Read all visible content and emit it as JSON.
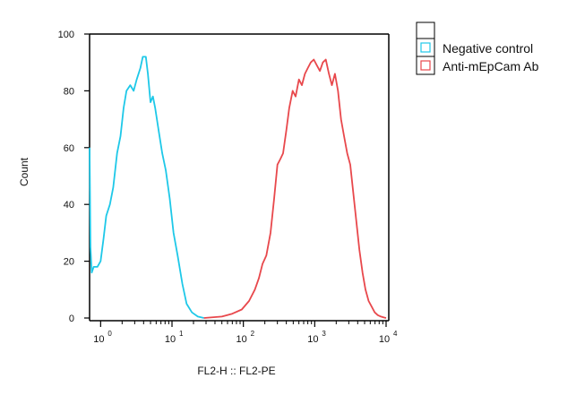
{
  "chart_data": {
    "type": "line",
    "title": "",
    "xlabel": "FL2-H :: FL2-PE",
    "ylabel": "Count",
    "xscale": "log",
    "xlim": [
      0.7,
      10000
    ],
    "ylim": [
      0,
      100
    ],
    "xticks": [
      {
        "base": "10",
        "exp": "0",
        "value": 1
      },
      {
        "base": "10",
        "exp": "1",
        "value": 10
      },
      {
        "base": "10",
        "exp": "2",
        "value": 100
      },
      {
        "base": "10",
        "exp": "3",
        "value": 1000
      },
      {
        "base": "10",
        "exp": "4",
        "value": 10000
      }
    ],
    "yticks": [
      0,
      20,
      40,
      60,
      80,
      100
    ],
    "legend_position": "top-right",
    "legend_header": "",
    "series": [
      {
        "name": "Negative control",
        "color": "#1ec8e8",
        "points": [
          [
            0.7,
            60
          ],
          [
            0.72,
            25
          ],
          [
            0.75,
            16
          ],
          [
            0.8,
            18
          ],
          [
            0.9,
            18
          ],
          [
            1.0,
            20
          ],
          [
            1.1,
            28
          ],
          [
            1.2,
            36
          ],
          [
            1.35,
            40
          ],
          [
            1.5,
            46
          ],
          [
            1.7,
            58
          ],
          [
            1.9,
            64
          ],
          [
            2.1,
            74
          ],
          [
            2.3,
            80
          ],
          [
            2.6,
            82
          ],
          [
            2.9,
            80
          ],
          [
            3.2,
            84
          ],
          [
            3.6,
            88
          ],
          [
            3.9,
            92
          ],
          [
            4.3,
            92
          ],
          [
            4.6,
            86
          ],
          [
            5.0,
            76
          ],
          [
            5.4,
            78
          ],
          [
            5.8,
            74
          ],
          [
            6.5,
            66
          ],
          [
            7.3,
            58
          ],
          [
            8.2,
            52
          ],
          [
            9.3,
            42
          ],
          [
            10.5,
            30
          ],
          [
            12,
            22
          ],
          [
            14,
            12
          ],
          [
            16,
            5
          ],
          [
            19,
            2
          ],
          [
            23,
            0.5
          ],
          [
            28,
            0
          ]
        ]
      },
      {
        "name": "Anti-mEpCam Ab",
        "color": "#e8484c",
        "points": [
          [
            28,
            0
          ],
          [
            50,
            0.5
          ],
          [
            70,
            1.5
          ],
          [
            95,
            3
          ],
          [
            120,
            6
          ],
          [
            145,
            10
          ],
          [
            165,
            14
          ],
          [
            185,
            19
          ],
          [
            210,
            22
          ],
          [
            240,
            30
          ],
          [
            270,
            42
          ],
          [
            300,
            54
          ],
          [
            330,
            56
          ],
          [
            360,
            58
          ],
          [
            400,
            66
          ],
          [
            440,
            74
          ],
          [
            490,
            80
          ],
          [
            540,
            78
          ],
          [
            600,
            84
          ],
          [
            660,
            82
          ],
          [
            730,
            86
          ],
          [
            800,
            88
          ],
          [
            880,
            90
          ],
          [
            970,
            91
          ],
          [
            1070,
            89
          ],
          [
            1180,
            87
          ],
          [
            1300,
            90
          ],
          [
            1430,
            91
          ],
          [
            1580,
            86
          ],
          [
            1740,
            82
          ],
          [
            1920,
            86
          ],
          [
            2120,
            80
          ],
          [
            2340,
            70
          ],
          [
            2580,
            64
          ],
          [
            2850,
            58
          ],
          [
            3150,
            54
          ],
          [
            3470,
            44
          ],
          [
            3830,
            34
          ],
          [
            4230,
            24
          ],
          [
            4670,
            16
          ],
          [
            5150,
            10
          ],
          [
            5690,
            6
          ],
          [
            6280,
            4
          ],
          [
            6930,
            2
          ],
          [
            7650,
            1
          ],
          [
            8450,
            0.5
          ],
          [
            9300,
            0.2
          ],
          [
            10000,
            0
          ]
        ]
      }
    ]
  }
}
